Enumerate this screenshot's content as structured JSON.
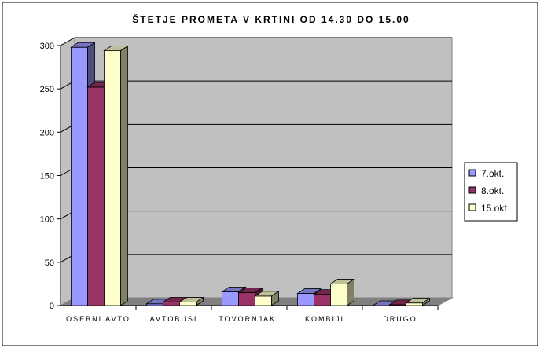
{
  "chart_data": {
    "type": "bar",
    "title": "ŠTETJE PROMETA V KRTINI OD 14.30 DO 15.00",
    "categories": [
      "OSEBNI AVTO",
      "AVTOBUSI",
      "TOVORNJAKI",
      "KOMBIJI",
      "DRUGO"
    ],
    "series": [
      {
        "name": "7.okt.",
        "color": "#9999FF",
        "values": [
          298,
          2,
          16,
          14,
          0
        ]
      },
      {
        "name": "8.okt.",
        "color": "#993366",
        "values": [
          252,
          4,
          15,
          13,
          1
        ]
      },
      {
        "name": "15.okt",
        "color": "#FFFFCC",
        "values": [
          294,
          4,
          11,
          25,
          3
        ]
      }
    ],
    "yticks": [
      "0",
      "50",
      "100",
      "150",
      "200",
      "250",
      "300"
    ],
    "ylim": [
      0,
      300
    ],
    "grid": true,
    "legend_placement": "right",
    "style": "3d-clustered-column",
    "wall_color": "#C0C0C0",
    "floor_color": "#808080"
  }
}
